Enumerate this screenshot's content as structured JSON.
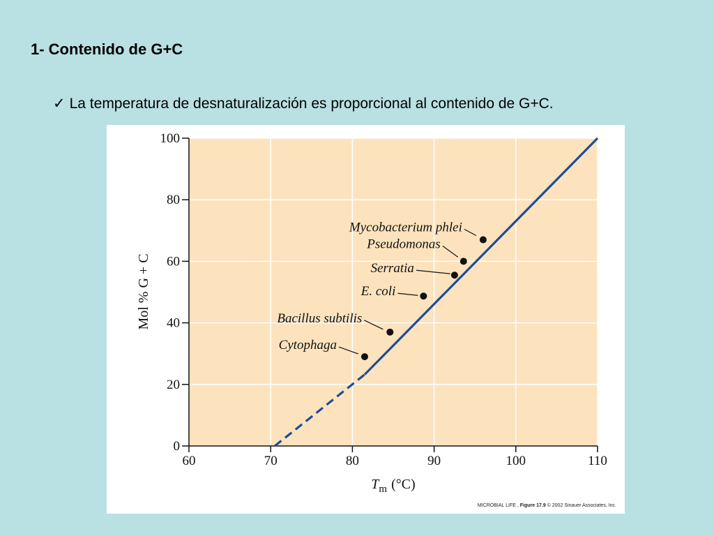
{
  "slide": {
    "title": "1- Contenido de G+C",
    "bullet_icon": "check-icon",
    "bullet_check": "✓",
    "bullet_text": "La temperatura de desnaturalización es proporcional al contenido de G+C."
  },
  "figure": {
    "credit_book": "MICROBIAL LIFE ,",
    "credit_figure": "Figure 17.9",
    "credit_rest": "© 2002 Sinauer Associates, Inc."
  },
  "colors": {
    "background": "#b9e0e3",
    "plot_background": "#fce3bd",
    "line": "#1d4c9a",
    "points": "#111111",
    "grid": "#ffffff"
  },
  "chart_data": {
    "type": "scatter",
    "title": "",
    "xlabel_main": "T",
    "xlabel_sub": "m",
    "xlabel_unit": "(°C)",
    "ylabel": "Mol % G + C",
    "xlim": [
      60,
      110
    ],
    "ylim": [
      0,
      100
    ],
    "xticks": [
      60,
      70,
      80,
      90,
      100,
      110
    ],
    "yticks": [
      0,
      20,
      40,
      60,
      80,
      100
    ],
    "grid": true,
    "points": [
      {
        "label": "Mycobacterium phlei",
        "x": 96.0,
        "y": 67
      },
      {
        "label": "Pseudomonas",
        "x": 93.6,
        "y": 60
      },
      {
        "label": "Serratia",
        "x": 92.5,
        "y": 55.5
      },
      {
        "label": "E. coli",
        "x": 88.7,
        "y": 48.7
      },
      {
        "label": "Bacillus subtilis",
        "x": 84.6,
        "y": 37
      },
      {
        "label": "Cytophaga",
        "x": 81.5,
        "y": 29
      }
    ],
    "fit_line": {
      "solid": [
        [
          81.5,
          23.2
        ],
        [
          110,
          100
        ]
      ],
      "dashed": [
        [
          70.5,
          0
        ],
        [
          81.5,
          23.2
        ]
      ]
    }
  }
}
